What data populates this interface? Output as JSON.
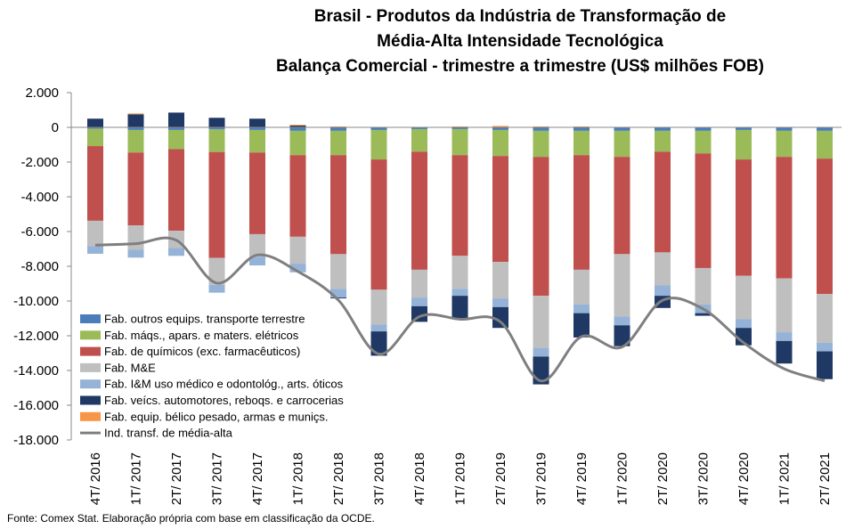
{
  "chart_data": {
    "type": "bar",
    "title_lines": [
      "Brasil - Produtos da Indústria de Transformação de",
      "Média-Alta Intensidade Tecnológica",
      "Balança Comercial - trimestre a trimestre (US$ milhões FOB)"
    ],
    "y_tick_labels": [
      "2.000",
      "0",
      "-2.000",
      "-4.000",
      "-6.000",
      "-8.000",
      "-10.000",
      "-12.000",
      "-14.000",
      "-16.000",
      "-18.000"
    ],
    "ylim": [
      -18000,
      2000
    ],
    "stacked": true,
    "grid": false,
    "legend_position": "bottom-left",
    "categories": [
      "4T/ 2016",
      "1T/ 2017",
      "2T/ 2017",
      "3T/ 2017",
      "4T/ 2017",
      "1T/ 2018",
      "2T/ 2018",
      "3T/ 2018",
      "4T/ 2018",
      "1T/ 2019",
      "2T/ 2019",
      "3T/ 2019",
      "4T/ 2019",
      "1T/ 2020",
      "2T/ 2020",
      "3T/ 2020",
      "4T/ 2020",
      "1T/ 2021",
      "2T/ 2021"
    ],
    "series": [
      {
        "name": "Fab. outros equips. transporte terrestre",
        "color": "#4a7ebb",
        "values": [
          -80,
          -150,
          -150,
          -120,
          -150,
          -200,
          -200,
          -150,
          -100,
          -100,
          -150,
          -200,
          -200,
          -200,
          -200,
          -200,
          -150,
          -200,
          -200
        ]
      },
      {
        "name": "Fab. máqs., apars. e maters. elétricos",
        "color": "#9bbb59",
        "values": [
          -1000,
          -1300,
          -1100,
          -1300,
          -1300,
          -1400,
          -1400,
          -1700,
          -1300,
          -1500,
          -1500,
          -1500,
          -1400,
          -1500,
          -1200,
          -1300,
          -1700,
          -1500,
          -1600
        ]
      },
      {
        "name": "Fab. de químicos (exc. farmacêuticos)",
        "color": "#c0504d",
        "values": [
          -4300,
          -4200,
          -4700,
          -6100,
          -4700,
          -4700,
          -5700,
          -7500,
          -6800,
          -5800,
          -6100,
          -8000,
          -6600,
          -5600,
          -5800,
          -6600,
          -6700,
          -7000,
          -7800
        ]
      },
      {
        "name": "Fab. M&E",
        "color": "#bfbfbf",
        "values": [
          -1450,
          -1400,
          -1000,
          -1550,
          -1300,
          -1550,
          -2000,
          -2000,
          -1600,
          -1900,
          -2100,
          -3000,
          -2000,
          -3600,
          -1900,
          -2100,
          -2500,
          -3100,
          -2800
        ]
      },
      {
        "name": "Fab. I&M uso médico e odontológ., arts. óticos",
        "color": "#95b3d7",
        "values": [
          -450,
          -450,
          -450,
          -450,
          -500,
          -500,
          -500,
          -400,
          -500,
          -400,
          -500,
          -500,
          -500,
          -500,
          -600,
          -500,
          -500,
          -500,
          -500
        ]
      },
      {
        "name": "Fab. veícs. automotores, reboqs. e carrocerias",
        "color": "#1f3864",
        "values": [
          500,
          750,
          850,
          550,
          500,
          100,
          -50,
          -1400,
          -900,
          -1300,
          -1200,
          -1600,
          -1400,
          -1200,
          -700,
          -150,
          -1000,
          -1300,
          -1600
        ]
      },
      {
        "name": "Fab. equip. bélico pesado, armas e munições",
        "color": "#f79646",
        "values": [
          0,
          50,
          0,
          0,
          0,
          50,
          50,
          0,
          0,
          50,
          80,
          50,
          50,
          0,
          0,
          0,
          0,
          0,
          0
        ]
      },
      {
        "name": "Ind. transf. de média-alta",
        "color": "#7f7f7f",
        "type": "line",
        "values": [
          -6780,
          -6700,
          -6500,
          -8970,
          -7350,
          -8300,
          -9950,
          -13050,
          -10900,
          -11050,
          -11200,
          -14600,
          -12050,
          -12650,
          -9960,
          -10450,
          -12400,
          -13900,
          -14600
        ]
      }
    ]
  },
  "legend_labels": [
    "Fab. outros equips. transporte terrestre",
    "Fab. máqs., apars. e maters. elétricos",
    "Fab. de químicos (exc. farmacêuticos)",
    "Fab. M&E",
    "Fab. I&M uso médico e odontológ., arts. óticos",
    "Fab. veícs. automotores, reboqs. e carrocerias",
    "Fab. equip. bélico pesado, armas e muniçs.",
    "Ind. transf. de média-alta"
  ],
  "source": "Fonte: Comex Stat. Elaboração própria com base em classificação da OCDE."
}
